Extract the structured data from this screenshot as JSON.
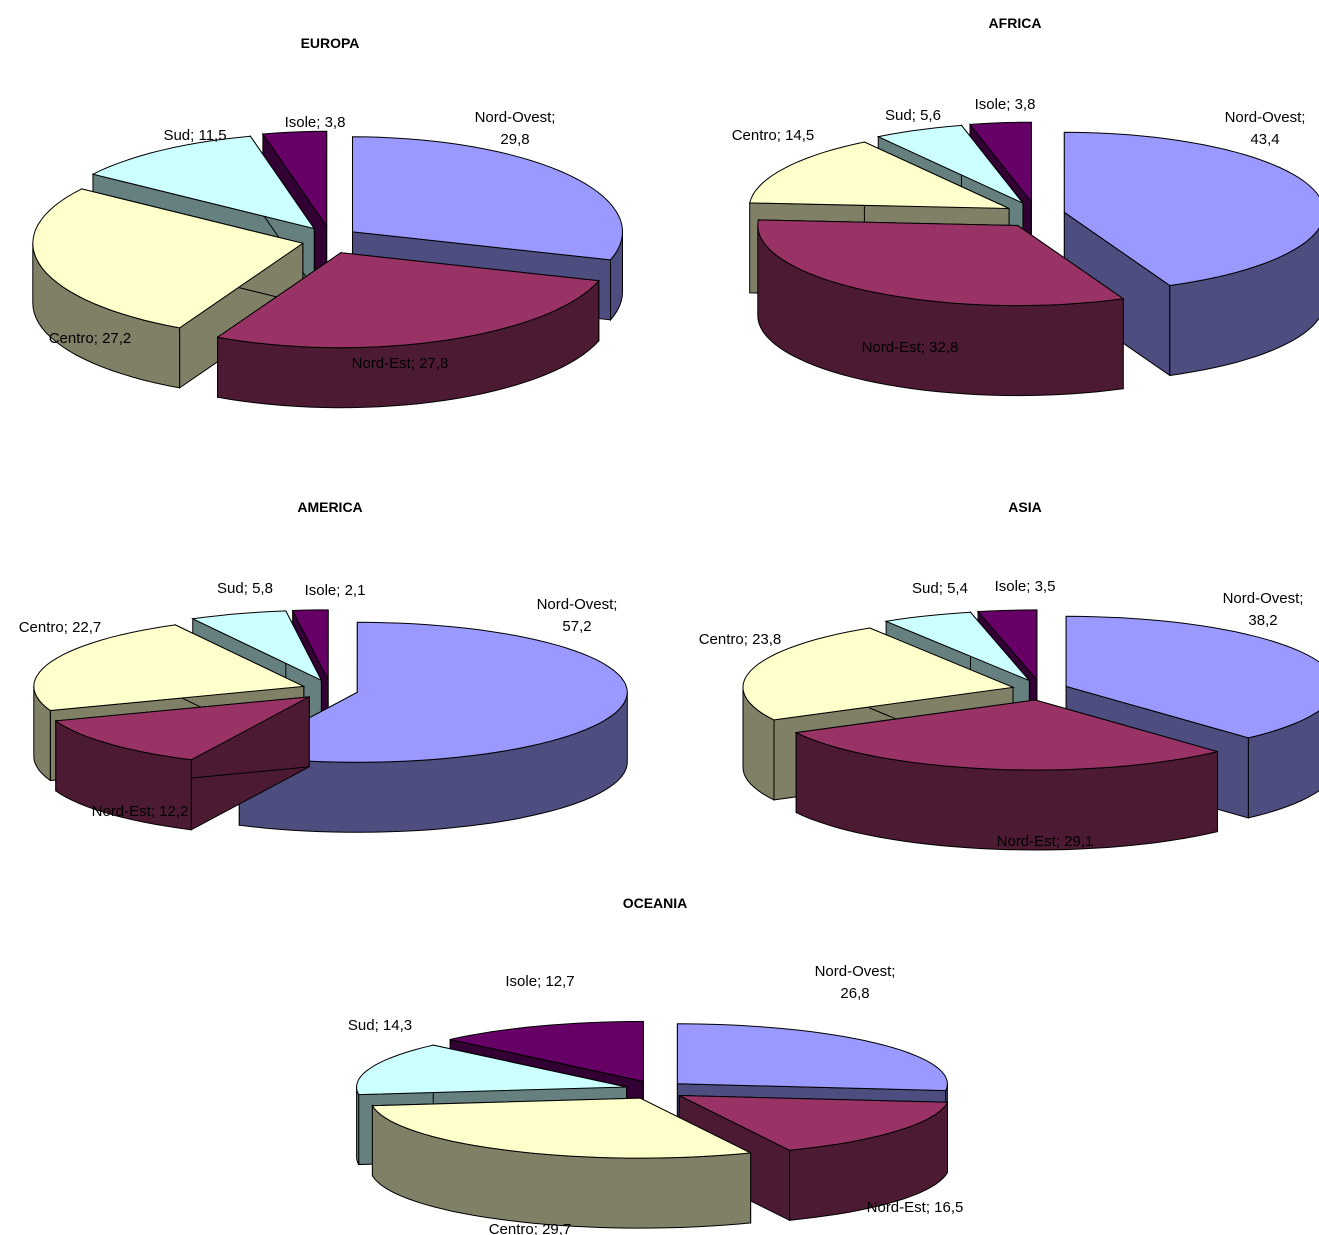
{
  "chart_data": [
    {
      "type": "pie",
      "title": "EUROPA",
      "categories": [
        "Nord-Ovest",
        "Nord-Est",
        "Centro",
        "Sud",
        "Isole"
      ],
      "values": [
        29.8,
        27.8,
        27.2,
        11.5,
        3.8
      ],
      "labels": [
        [
          "Nord-Ovest;",
          "29,8"
        ],
        [
          "Nord-Est;  27,8"
        ],
        [
          "Centro;  27,2"
        ],
        [
          "Sud;  11,5"
        ],
        [
          "Isole;  3,8"
        ]
      ]
    },
    {
      "type": "pie",
      "title": "AFRICA",
      "categories": [
        "Nord-Ovest",
        "Nord-Est",
        "Centro",
        "Sud",
        "Isole"
      ],
      "values": [
        43.4,
        32.8,
        14.5,
        5.6,
        3.8
      ],
      "labels": [
        [
          "Nord-Ovest;",
          "43,4"
        ],
        [
          "Nord-Est;  32,8"
        ],
        [
          "Centro;  14,5"
        ],
        [
          "Sud;  5,6"
        ],
        [
          "Isole;  3,8"
        ]
      ]
    },
    {
      "type": "pie",
      "title": "AMERICA",
      "categories": [
        "Nord-Ovest",
        "Nord-Est",
        "Centro",
        "Sud",
        "Isole"
      ],
      "values": [
        57.2,
        12.2,
        22.7,
        5.8,
        2.1
      ],
      "labels": [
        [
          "Nord-Ovest;",
          "57,2"
        ],
        [
          "Nord-Est;  12,2"
        ],
        [
          "Centro;  22,7"
        ],
        [
          "Sud;  5,8"
        ],
        [
          "Isole;  2,1"
        ]
      ]
    },
    {
      "type": "pie",
      "title": "ASIA",
      "categories": [
        "Nord-Ovest",
        "Nord-Est",
        "Centro",
        "Sud",
        "Isole"
      ],
      "values": [
        38.2,
        29.1,
        23.8,
        5.4,
        3.5
      ],
      "labels": [
        [
          "Nord-Ovest;",
          "38,2"
        ],
        [
          "Nord-Est;  29,1"
        ],
        [
          "Centro;  23,8"
        ],
        [
          "Sud;  5,4"
        ],
        [
          "Isole;  3,5"
        ]
      ]
    },
    {
      "type": "pie",
      "title": "OCEANIA",
      "categories": [
        "Nord-Ovest",
        "Nord-Est",
        "Centro",
        "Sud",
        "Isole"
      ],
      "values": [
        26.8,
        16.5,
        29.7,
        14.3,
        12.7
      ],
      "labels": [
        [
          "Nord-Ovest;",
          "26,8"
        ],
        [
          "Nord-Est;  16,5"
        ],
        [
          "Centro;  29,7"
        ],
        [
          "Sud;  14,3"
        ],
        [
          "Isole;  12,7"
        ]
      ]
    }
  ],
  "colors": {
    "Nord-Ovest": {
      "top": "#9999ff",
      "side": "#4d4d80"
    },
    "Nord-Est": {
      "top": "#993366",
      "side": "#4d1a33"
    },
    "Centro": {
      "top": "#ffffcc",
      "side": "#808066"
    },
    "Sud": {
      "top": "#ccffff",
      "side": "#668080"
    },
    "Isole": {
      "top": "#660066",
      "side": "#330033"
    }
  }
}
